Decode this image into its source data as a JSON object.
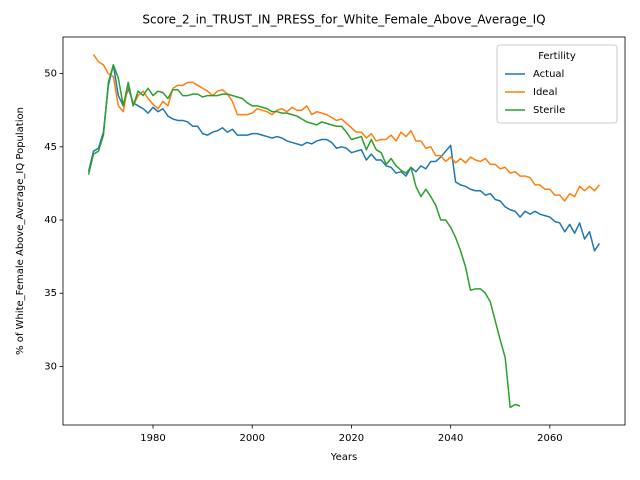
{
  "chart_data": {
    "type": "line",
    "title": "Score_2_in_TRUST_IN_PRESS_for_White_Female_Above_Average_IQ",
    "xlabel": "Years",
    "ylabel": "% of White_Female Above_Average_IQ Population",
    "legend_title": "Fertility",
    "legend": "upper right",
    "x": [
      1967,
      1968,
      1969,
      1970,
      1971,
      1972,
      1973,
      1974,
      1975,
      1976,
      1977,
      1978,
      1979,
      1980,
      1981,
      1982,
      1983,
      1984,
      1985,
      1986,
      1987,
      1988,
      1989,
      1990,
      1991,
      1992,
      1993,
      1994,
      1995,
      1996,
      1997,
      1998,
      1999,
      2000,
      2001,
      2002,
      2003,
      2004,
      2005,
      2006,
      2007,
      2008,
      2009,
      2010,
      2011,
      2012,
      2013,
      2014,
      2015,
      2016,
      2017,
      2018,
      2019,
      2020,
      2021,
      2022,
      2023,
      2024,
      2025,
      2026,
      2027,
      2028,
      2029,
      2030,
      2031,
      2032,
      2033,
      2034,
      2035,
      2036,
      2037,
      2038,
      2039,
      2040,
      2041,
      2042,
      2043,
      2044,
      2045,
      2046,
      2047,
      2048,
      2049,
      2050,
      2051,
      2052,
      2053,
      2054,
      2055,
      2056,
      2057,
      2058,
      2059,
      2060,
      2061,
      2062,
      2063,
      2064,
      2065,
      2066,
      2067,
      2068,
      2069,
      2070
    ],
    "series": [
      {
        "name": "Actual",
        "color": "#1f77b4",
        "values": [
          43.3,
          44.7,
          44.9,
          46.0,
          49.2,
          50.6,
          48.5,
          47.8,
          49.0,
          48.0,
          47.8,
          47.6,
          47.3,
          47.7,
          47.4,
          47.6,
          47.1,
          46.9,
          46.8,
          46.8,
          46.7,
          46.4,
          46.4,
          45.9,
          45.8,
          46.0,
          46.1,
          46.3,
          46.0,
          46.2,
          45.8,
          45.8,
          45.8,
          45.9,
          45.9,
          45.8,
          45.7,
          45.6,
          45.7,
          45.6,
          45.4,
          45.3,
          45.2,
          45.1,
          45.3,
          45.2,
          45.4,
          45.5,
          45.5,
          45.3,
          44.9,
          45.0,
          44.9,
          44.6,
          44.7,
          44.8,
          44.1,
          44.5,
          44.1,
          44.1,
          43.7,
          43.6,
          43.2,
          43.3,
          43.0,
          43.6,
          43.3,
          43.7,
          43.5,
          44.0,
          44.0,
          44.3,
          44.7,
          45.1,
          42.6,
          42.4,
          42.3,
          42.1,
          42.0,
          42.0,
          41.7,
          41.8,
          41.4,
          41.3,
          40.9,
          40.7,
          40.6,
          40.2,
          40.6,
          40.4,
          40.6,
          40.4,
          40.3,
          40.2,
          39.9,
          39.8,
          39.2,
          39.7,
          39.1,
          39.8,
          38.7,
          39.2,
          37.9,
          38.4
        ]
      },
      {
        "name": "Ideal",
        "color": "#ff7f0e",
        "values": [
          null,
          51.3,
          50.8,
          50.6,
          50.0,
          49.8,
          47.8,
          47.4,
          49.3,
          47.8,
          48.5,
          48.8,
          48.3,
          47.9,
          47.6,
          48.1,
          47.8,
          49.0,
          49.2,
          49.2,
          49.4,
          49.4,
          49.2,
          49.0,
          48.8,
          48.5,
          48.8,
          48.9,
          48.6,
          48.1,
          47.2,
          47.2,
          47.2,
          47.3,
          47.6,
          47.5,
          47.4,
          47.2,
          47.5,
          47.6,
          47.4,
          47.7,
          47.5,
          47.5,
          47.8,
          47.2,
          47.4,
          47.3,
          47.2,
          47.0,
          46.8,
          46.9,
          46.6,
          46.3,
          46.0,
          46.0,
          45.6,
          45.9,
          45.4,
          45.5,
          45.5,
          45.8,
          45.4,
          46.0,
          45.7,
          46.1,
          45.4,
          45.4,
          44.9,
          45.0,
          44.4,
          44.4,
          44.0,
          44.3,
          43.9,
          44.2,
          43.9,
          44.3,
          44.1,
          44.0,
          44.2,
          43.8,
          43.8,
          43.5,
          43.6,
          43.2,
          43.3,
          43.0,
          43.0,
          42.9,
          42.4,
          42.4,
          42.1,
          42.1,
          41.7,
          41.7,
          41.3,
          41.8,
          41.6,
          42.3,
          42.0,
          42.3,
          42.0,
          42.4
        ]
      },
      {
        "name": "Sterile",
        "color": "#2ca02c",
        "values": [
          43.1,
          44.5,
          44.7,
          45.8,
          49.4,
          50.6,
          49.7,
          47.8,
          49.4,
          47.8,
          48.8,
          48.5,
          49.0,
          48.5,
          48.8,
          48.7,
          48.3,
          48.9,
          48.9,
          48.5,
          48.5,
          48.6,
          48.6,
          48.4,
          48.5,
          48.5,
          48.5,
          48.6,
          48.6,
          48.5,
          48.4,
          48.3,
          48.0,
          47.8,
          47.8,
          47.7,
          47.6,
          47.4,
          47.4,
          47.3,
          47.3,
          47.2,
          47.1,
          46.9,
          46.7,
          46.6,
          46.5,
          46.7,
          46.6,
          46.5,
          46.4,
          46.4,
          46.0,
          45.5,
          45.6,
          45.7,
          44.8,
          45.5,
          44.8,
          44.6,
          43.8,
          44.2,
          43.7,
          43.4,
          43.2,
          43.6,
          42.3,
          41.6,
          42.1,
          41.6,
          41.0,
          40.0,
          40.0,
          39.5,
          38.8,
          37.9,
          36.8,
          35.2,
          35.3,
          35.3,
          35.0,
          34.4,
          33.1,
          31.8,
          30.6,
          27.2,
          27.4,
          27.3,
          null,
          null,
          null,
          null,
          null,
          null,
          null,
          null,
          null,
          null,
          null,
          null,
          null,
          null,
          null,
          null
        ]
      }
    ],
    "xlim": [
      1961.85,
      2075.15
    ],
    "xticks": [
      1980,
      2000,
      2020,
      2040,
      2060
    ],
    "ylim": [
      26.0,
      52.5
    ],
    "yticks": [
      30,
      35,
      40,
      45,
      50
    ]
  }
}
